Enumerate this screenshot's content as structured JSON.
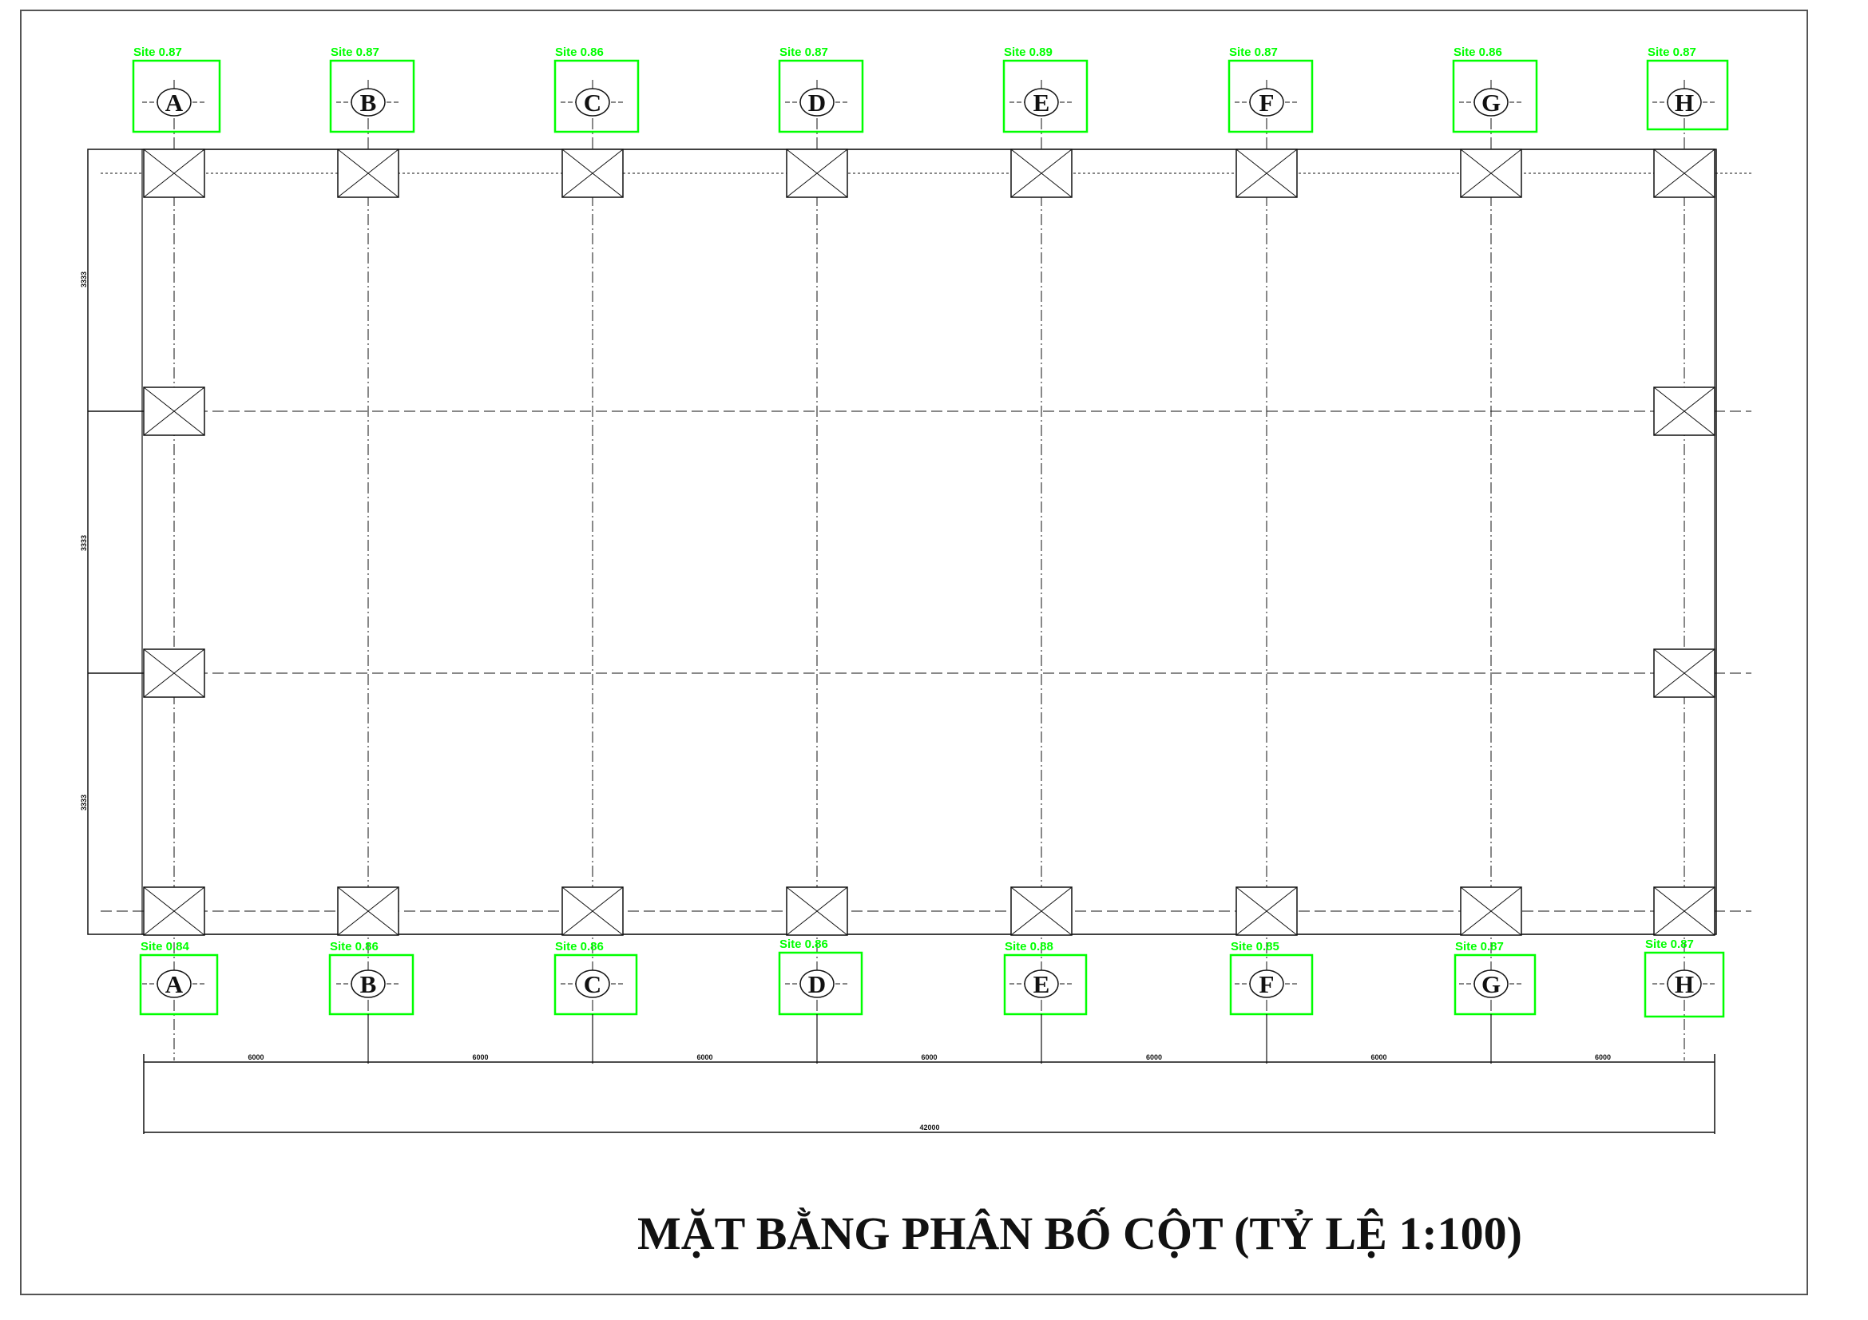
{
  "drawing": {
    "title": "MẶT BẰNG PHÂN BỐ CỘT (TỶ LỆ 1:100)",
    "grid_axes": [
      "A",
      "B",
      "C",
      "D",
      "E",
      "F",
      "G",
      "H"
    ],
    "span_dimensions": [
      "6000",
      "6000",
      "6000",
      "6000",
      "6000",
      "6000",
      "6000"
    ],
    "overall_dimension": "42000",
    "side_dimensions": [
      "3333",
      "3333",
      "3333"
    ]
  },
  "detections": {
    "top": [
      {
        "axis": "A",
        "label": "Site 0.87"
      },
      {
        "axis": "B",
        "label": "Site 0.87"
      },
      {
        "axis": "C",
        "label": "Site 0.86"
      },
      {
        "axis": "D",
        "label": "Site 0.87"
      },
      {
        "axis": "E",
        "label": "Site 0.89"
      },
      {
        "axis": "F",
        "label": "Site 0.87"
      },
      {
        "axis": "G",
        "label": "Site 0.86"
      },
      {
        "axis": "H",
        "label": "Site 0.87"
      }
    ],
    "bottom": [
      {
        "axis": "A",
        "label": "Site 0.84"
      },
      {
        "axis": "B",
        "label": "Site 0.86"
      },
      {
        "axis": "C",
        "label": "Site 0.86"
      },
      {
        "axis": "D",
        "label": "Site 0.86"
      },
      {
        "axis": "E",
        "label": "Site 0.88"
      },
      {
        "axis": "F",
        "label": "Site 0.85"
      },
      {
        "axis": "G",
        "label": "Site 0.87"
      },
      {
        "axis": "H",
        "label": "Site 0.87"
      }
    ]
  },
  "colors": {
    "linework": "#111111",
    "detection_box": "#00ff00",
    "sheet_border": "#555555",
    "background": "#ffffff"
  }
}
